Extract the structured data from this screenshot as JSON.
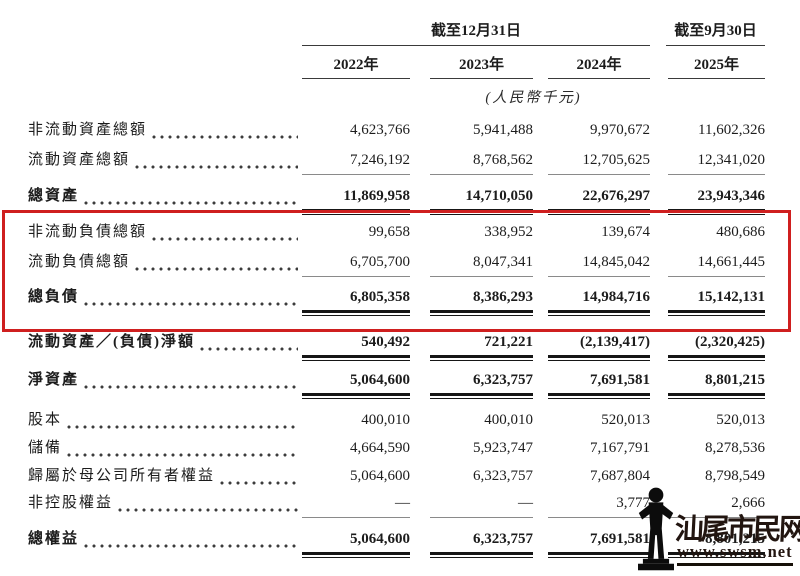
{
  "header": {
    "group1_label": "截至12月31日",
    "group2_label": "截至9月30日",
    "years": [
      "2022年",
      "2023年",
      "2024年",
      "2025年"
    ],
    "unit_note": "(人民幣千元)"
  },
  "table": {
    "rows": [
      {
        "label": "非流動資產總額",
        "values": [
          "4,623,766",
          "5,941,488",
          "9,970,672",
          "11,602,326"
        ],
        "style": "normal"
      },
      {
        "label": "流動資產總額",
        "values": [
          "7,246,192",
          "8,768,562",
          "12,705,625",
          "12,341,020"
        ],
        "style": "rule1"
      },
      {
        "label": "總資產",
        "values": [
          "11,869,958",
          "14,710,050",
          "22,676,297",
          "23,943,346"
        ],
        "style": "total"
      },
      {
        "label": "非流動負債總額",
        "values": [
          "99,658",
          "338,952",
          "139,674",
          "480,686"
        ],
        "style": "normal"
      },
      {
        "label": "流動負債總額",
        "values": [
          "6,705,700",
          "8,047,341",
          "14,845,042",
          "14,661,445"
        ],
        "style": "rule1"
      },
      {
        "label": "總負債",
        "values": [
          "6,805,358",
          "8,386,293",
          "14,984,716",
          "15,142,131"
        ],
        "style": "total"
      },
      {
        "label": "流動資產／(負債)淨額",
        "values": [
          "540,492",
          "721,221",
          "(2,139,417)",
          "(2,320,425)"
        ],
        "style": "total"
      },
      {
        "label": "淨資產",
        "values": [
          "5,064,600",
          "6,323,757",
          "7,691,581",
          "8,801,215"
        ],
        "style": "total"
      },
      {
        "label": "股本",
        "values": [
          "400,010",
          "400,010",
          "520,013",
          "520,013"
        ],
        "style": "normal"
      },
      {
        "label": "儲備",
        "values": [
          "4,664,590",
          "5,923,747",
          "7,167,791",
          "8,278,536"
        ],
        "style": "normal"
      },
      {
        "label": "歸屬於母公司所有者權益",
        "values": [
          "5,064,600",
          "6,323,757",
          "7,687,804",
          "8,798,549"
        ],
        "style": "normal"
      },
      {
        "label": "非控股權益",
        "values": [
          "—",
          "—",
          "3,777",
          "2,666"
        ],
        "style": "rule1"
      },
      {
        "label": "總權益",
        "values": [
          "5,064,600",
          "6,323,757",
          "7,691,581",
          "8,801,215"
        ],
        "style": "total"
      }
    ]
  },
  "annotation": {
    "highlight_box_color": "#cf1f1f"
  },
  "watermark": {
    "site_name": "汕尾市民网",
    "site_url": "www.swsm.net",
    "text_color": "#221510"
  }
}
